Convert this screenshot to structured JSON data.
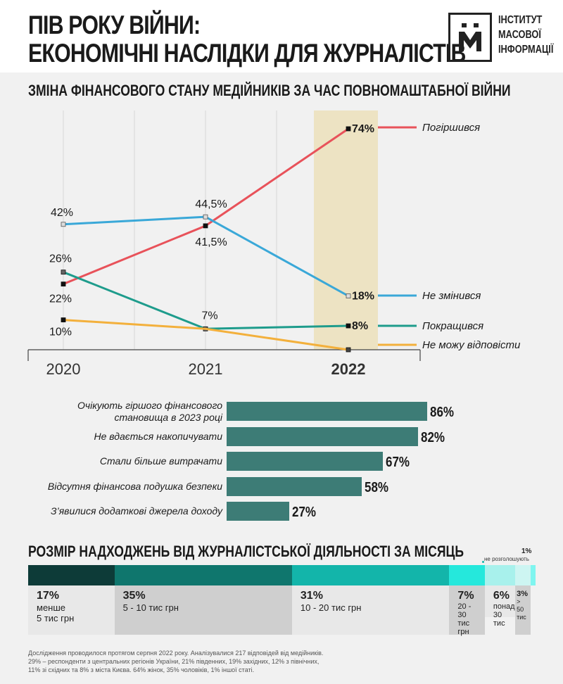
{
  "header": {
    "title_line1": "ПІВ РОКУ ВІЙНИ:",
    "title_line2": "ЕКОНОМІЧНІ НАСЛІДКИ ДЛЯ ЖУРНАЛІСТІВ",
    "logo_line1": "ІНСТИТУТ",
    "logo_line2": "МАСОВОЇ",
    "logo_line3": "ІНФОРМАЦІЇ"
  },
  "colors": {
    "worse": "#e8525a",
    "same": "#3aa8d8",
    "better": "#1e9c8c",
    "unsure": "#f3b03c",
    "highlight": "#ede3c3",
    "bar": "#3d7c76",
    "seg1": "#0d3b38",
    "seg2": "#0f766d",
    "seg3": "#13b5aa",
    "seg4": "#25e8dc",
    "seg5": "#a8f1ec",
    "seg6": "#cdf5f2",
    "seg7": "#7ff5ef"
  },
  "chart_data": [
    {
      "type": "line",
      "title": "ЗМІНА ФІНАНСОВОГО СТАНУ МЕДІЙНИКІВ ЗА ЧАС ПОВНОМАШТАБНОЇ ВІЙНИ",
      "x": [
        "2020",
        "2021",
        "2022"
      ],
      "highlight_x": "2022",
      "ylim": [
        0,
        80
      ],
      "grid": "vertical",
      "series": [
        {
          "name": "Погіршився",
          "values": [
            22,
            41.5,
            74
          ],
          "labels": [
            "22%",
            "41,5%",
            "74%"
          ],
          "color_key": "worse"
        },
        {
          "name": "Не змінився",
          "values": [
            42,
            44.5,
            18
          ],
          "labels": [
            "42%",
            "44,5%",
            "18%"
          ],
          "color_key": "same"
        },
        {
          "name": "Покращився",
          "values": [
            26,
            7,
            8
          ],
          "labels": [
            "26%",
            "7%",
            "8%"
          ],
          "color_key": "better"
        },
        {
          "name": "Не можу відповісти",
          "values": [
            10,
            7,
            0
          ],
          "labels": [
            "10%",
            "",
            ""
          ],
          "color_key": "unsure"
        }
      ]
    },
    {
      "type": "bar",
      "orientation": "horizontal",
      "categories": [
        "Очікують гіршого фінансового становища в 2023 році",
        "Не вдається накопичувати",
        "Стали більше витрачати",
        "Відсутня фінансова подушка безпеки",
        "З’явилися додаткові джерела доходу"
      ],
      "category_lines": [
        [
          "Очікують гіршого фінансового",
          "становища в 2023 році"
        ],
        [
          "Не вдається накопичувати"
        ],
        [
          "Стали більше витрачати"
        ],
        [
          "Відсутня фінансова подушка безпеки"
        ],
        [
          "З’явилися додаткові джерела доходу"
        ]
      ],
      "values": [
        86,
        82,
        67,
        58,
        27
      ],
      "value_labels": [
        "86%",
        "82%",
        "67%",
        "58%",
        "27%"
      ],
      "xlim": [
        0,
        100
      ]
    },
    {
      "type": "bar",
      "orientation": "stacked-horizontal",
      "title": "РОЗМІР НАДХОДЖЕНЬ ВІД ЖУРНАЛІСТСЬКОЇ ДІЯЛЬНОСТІ ЗА МІСЯЦЬ",
      "segments": [
        {
          "value": 17,
          "pct": "17%",
          "lines": [
            "менше",
            "5 тис грн"
          ],
          "color_key": "seg1"
        },
        {
          "value": 35,
          "pct": "35%",
          "lines": [
            "5 - 10 тис грн"
          ],
          "color_key": "seg2"
        },
        {
          "value": 31,
          "pct": "31%",
          "lines": [
            "10 - 20 тис грн"
          ],
          "color_key": "seg3"
        },
        {
          "value": 7,
          "pct": "7%",
          "lines": [
            "20 - 30",
            "тис грн"
          ],
          "color_key": "seg4"
        },
        {
          "value": 6,
          "pct": "6%",
          "lines": [
            "понад",
            "30 тис"
          ],
          "color_key": "seg5"
        },
        {
          "value": 3,
          "pct": "3%",
          "lines": [
            ">",
            "50",
            "тис"
          ],
          "color_key": "seg6"
        },
        {
          "value": 1,
          "pct": "1%",
          "lines": [
            "не розголошують"
          ],
          "color_key": "seg7"
        }
      ]
    }
  ],
  "footnote": {
    "line1": "Дослідження проводилося протягом серпня 2022 року. Аналізувалися 217 відповідей від медійників.",
    "line2": "29% – респонденти з центральних регіонів України, 21% південних, 19% західних, 12% з північних,",
    "line3": "11% зі східних та 8% з міста Києва. 64% жінок, 35% чоловіків, 1% іншої статі."
  }
}
